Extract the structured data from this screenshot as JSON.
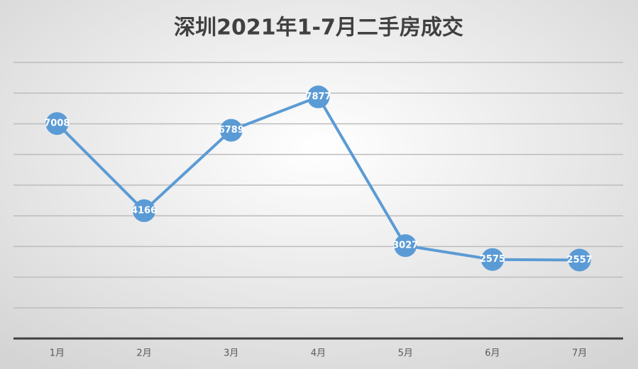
{
  "chart_data": {
    "type": "line",
    "title": "深圳2021年1-7月二手房成交",
    "categories": [
      "1月",
      "2月",
      "3月",
      "4月",
      "5月",
      "6月",
      "7月"
    ],
    "values": [
      7008,
      4166,
      6789,
      7877,
      3027,
      2575,
      2557
    ],
    "color": "#5b9bd5",
    "ylim": [
      0,
      9000
    ],
    "yticks": [
      0,
      1000,
      2000,
      3000,
      4000,
      5000,
      6000,
      7000,
      8000,
      9000
    ],
    "grid": true,
    "data_labels": true
  }
}
